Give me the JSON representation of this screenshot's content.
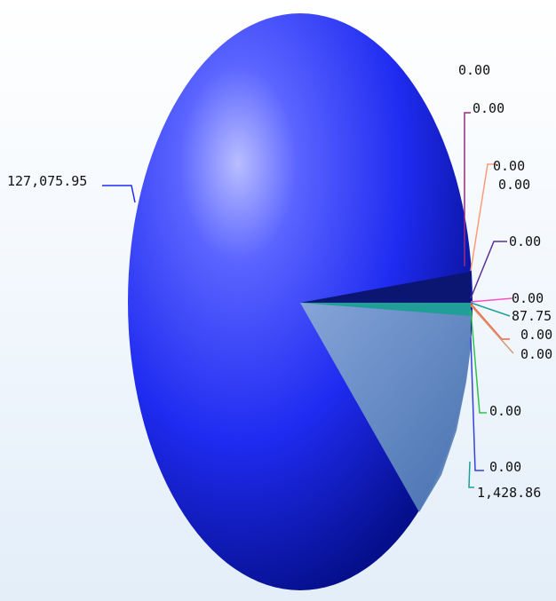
{
  "chart_data": {
    "type": "pie",
    "title": "",
    "slices": [
      {
        "label": "127,075.95",
        "value": 127075.95,
        "color": "#1f2bf0"
      },
      {
        "label": "0.00",
        "value": 0.0,
        "color": "#b0d3ec"
      },
      {
        "label": "0.00",
        "value": 0.0,
        "color": "#9b2a7c"
      },
      {
        "label": "0.00",
        "value": 0.0,
        "color": "#ff9b79"
      },
      {
        "label": "0.00",
        "value": 0.0,
        "color": "#e4c25e"
      },
      {
        "label": "0.00",
        "value": 0.0,
        "color": "#5b2f96"
      },
      {
        "label": "0.00",
        "value": 0.0,
        "color": "#ff4fc3"
      },
      {
        "label": "87.75",
        "value": 87.75,
        "color": "#1f9f97"
      },
      {
        "label": "0.00",
        "value": 0.0,
        "color": "#ff5f3a"
      },
      {
        "label": "0.00",
        "value": 0.0,
        "color": "#d29a7a"
      },
      {
        "label": "0.00",
        "value": 0.0,
        "color": "#2fc24b"
      },
      {
        "label": "0.00",
        "value": 0.0,
        "color": "#3342dc"
      },
      {
        "label": "1,428.86",
        "value": 1428.86,
        "color": "#1f9f97"
      }
    ]
  }
}
